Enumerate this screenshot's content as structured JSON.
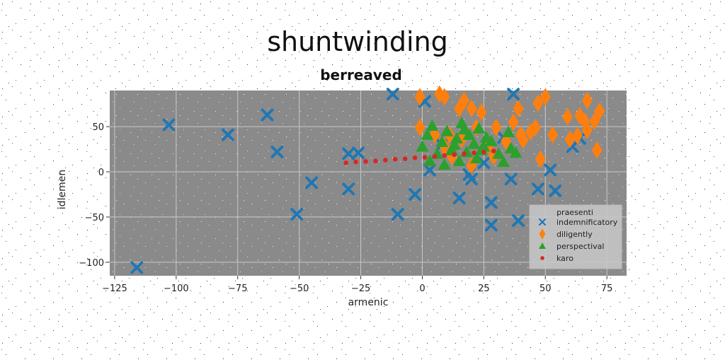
{
  "chart_data": {
    "type": "scatter",
    "title": "shuntwinding",
    "subtitle": "berreaved",
    "xlabel": "armenic",
    "ylabel": "idlemen",
    "xlim": [
      -127,
      83
    ],
    "ylim": [
      -115,
      90
    ],
    "xticks": [
      -125,
      -100,
      -75,
      -50,
      -25,
      0,
      25,
      50,
      75
    ],
    "xtick_labels": [
      "−125",
      "−100",
      "−75",
      "−50",
      "−25",
      "0",
      "25",
      "50",
      "75"
    ],
    "yticks": [
      -100,
      -50,
      0,
      50
    ],
    "ytick_labels": [
      "−100",
      "−50",
      "0",
      "50"
    ],
    "grid": true,
    "background": "#8a8a8a",
    "legend": {
      "title": "praesenti",
      "placement": "lower-right",
      "entries": [
        "indemnificatory",
        "diligently",
        "perspectival",
        "karo"
      ]
    },
    "series": [
      {
        "name": "indemnificatory",
        "marker": "x",
        "color": "#1f77b4",
        "points": [
          [
            -116,
            -106
          ],
          [
            -103,
            52
          ],
          [
            -79,
            41
          ],
          [
            -63,
            63
          ],
          [
            -59,
            22
          ],
          [
            -45,
            -12
          ],
          [
            -51,
            -47
          ],
          [
            -30,
            20
          ],
          [
            -26,
            21
          ],
          [
            -30,
            -19
          ],
          [
            -10,
            -47
          ],
          [
            -12,
            86
          ],
          [
            -3,
            -25
          ],
          [
            1,
            78
          ],
          [
            3,
            2
          ],
          [
            8,
            30
          ],
          [
            19,
            -3
          ],
          [
            15,
            -29
          ],
          [
            20,
            -8
          ],
          [
            25,
            10
          ],
          [
            28,
            -34
          ],
          [
            28,
            -59
          ],
          [
            33,
            38
          ],
          [
            36,
            -8
          ],
          [
            37,
            86
          ],
          [
            39,
            -54
          ],
          [
            47,
            -19
          ],
          [
            52,
            2
          ],
          [
            54,
            -21
          ],
          [
            61,
            28
          ],
          [
            64,
            37
          ]
        ]
      },
      {
        "name": "diligently",
        "marker": "d",
        "color": "#ff7f0e",
        "points": [
          [
            -1,
            83
          ],
          [
            7,
            86
          ],
          [
            9,
            83
          ],
          [
            15,
            70
          ],
          [
            17,
            79
          ],
          [
            20,
            70
          ],
          [
            24,
            66
          ],
          [
            -1,
            49
          ],
          [
            5,
            41
          ],
          [
            11,
            41
          ],
          [
            16,
            36
          ],
          [
            22,
            49
          ],
          [
            27,
            29
          ],
          [
            30,
            49
          ],
          [
            34,
            34
          ],
          [
            37,
            55
          ],
          [
            39,
            70
          ],
          [
            40,
            41
          ],
          [
            41,
            35
          ],
          [
            44,
            44
          ],
          [
            46,
            49
          ],
          [
            47,
            76
          ],
          [
            50,
            83
          ],
          [
            53,
            41
          ],
          [
            48,
            14
          ],
          [
            59,
            61
          ],
          [
            60,
            36
          ],
          [
            63,
            40
          ],
          [
            64,
            62
          ],
          [
            66,
            56
          ],
          [
            67,
            46
          ],
          [
            67,
            79
          ],
          [
            70,
            56
          ],
          [
            71,
            24
          ],
          [
            72,
            67
          ],
          [
            9,
            28
          ],
          [
            12,
            17
          ],
          [
            20,
            7
          ],
          [
            29,
            17
          ]
        ]
      },
      {
        "name": "perspectival",
        "marker": "^",
        "color": "#2ca02c",
        "points": [
          [
            0,
            28
          ],
          [
            2,
            41
          ],
          [
            4,
            51
          ],
          [
            6,
            20
          ],
          [
            8,
            33
          ],
          [
            10,
            45
          ],
          [
            12,
            24
          ],
          [
            14,
            37
          ],
          [
            16,
            54
          ],
          [
            18,
            22
          ],
          [
            19,
            41
          ],
          [
            21,
            31
          ],
          [
            23,
            48
          ],
          [
            25,
            28
          ],
          [
            26,
            38
          ],
          [
            28,
            34
          ],
          [
            3,
            12
          ],
          [
            9,
            8
          ],
          [
            15,
            12
          ],
          [
            22,
            15
          ],
          [
            31,
            20
          ],
          [
            33,
            11
          ],
          [
            35,
            44
          ],
          [
            36,
            26
          ],
          [
            38,
            21
          ],
          [
            13,
            30
          ],
          [
            17,
            47
          ],
          [
            24,
            24
          ]
        ]
      },
      {
        "name": "karo",
        "marker": "o",
        "color": "#d62728",
        "points": [
          [
            -31,
            10
          ],
          [
            -27,
            11
          ],
          [
            -23,
            11.5
          ],
          [
            -19,
            12
          ],
          [
            -15,
            13
          ],
          [
            -11,
            14
          ],
          [
            -7,
            14.5
          ],
          [
            -3,
            15.5
          ],
          [
            1,
            16
          ],
          [
            5,
            17
          ],
          [
            9,
            18
          ],
          [
            13,
            19
          ],
          [
            17,
            20
          ],
          [
            21,
            21
          ],
          [
            25,
            22
          ],
          [
            29,
            23
          ]
        ]
      }
    ]
  }
}
